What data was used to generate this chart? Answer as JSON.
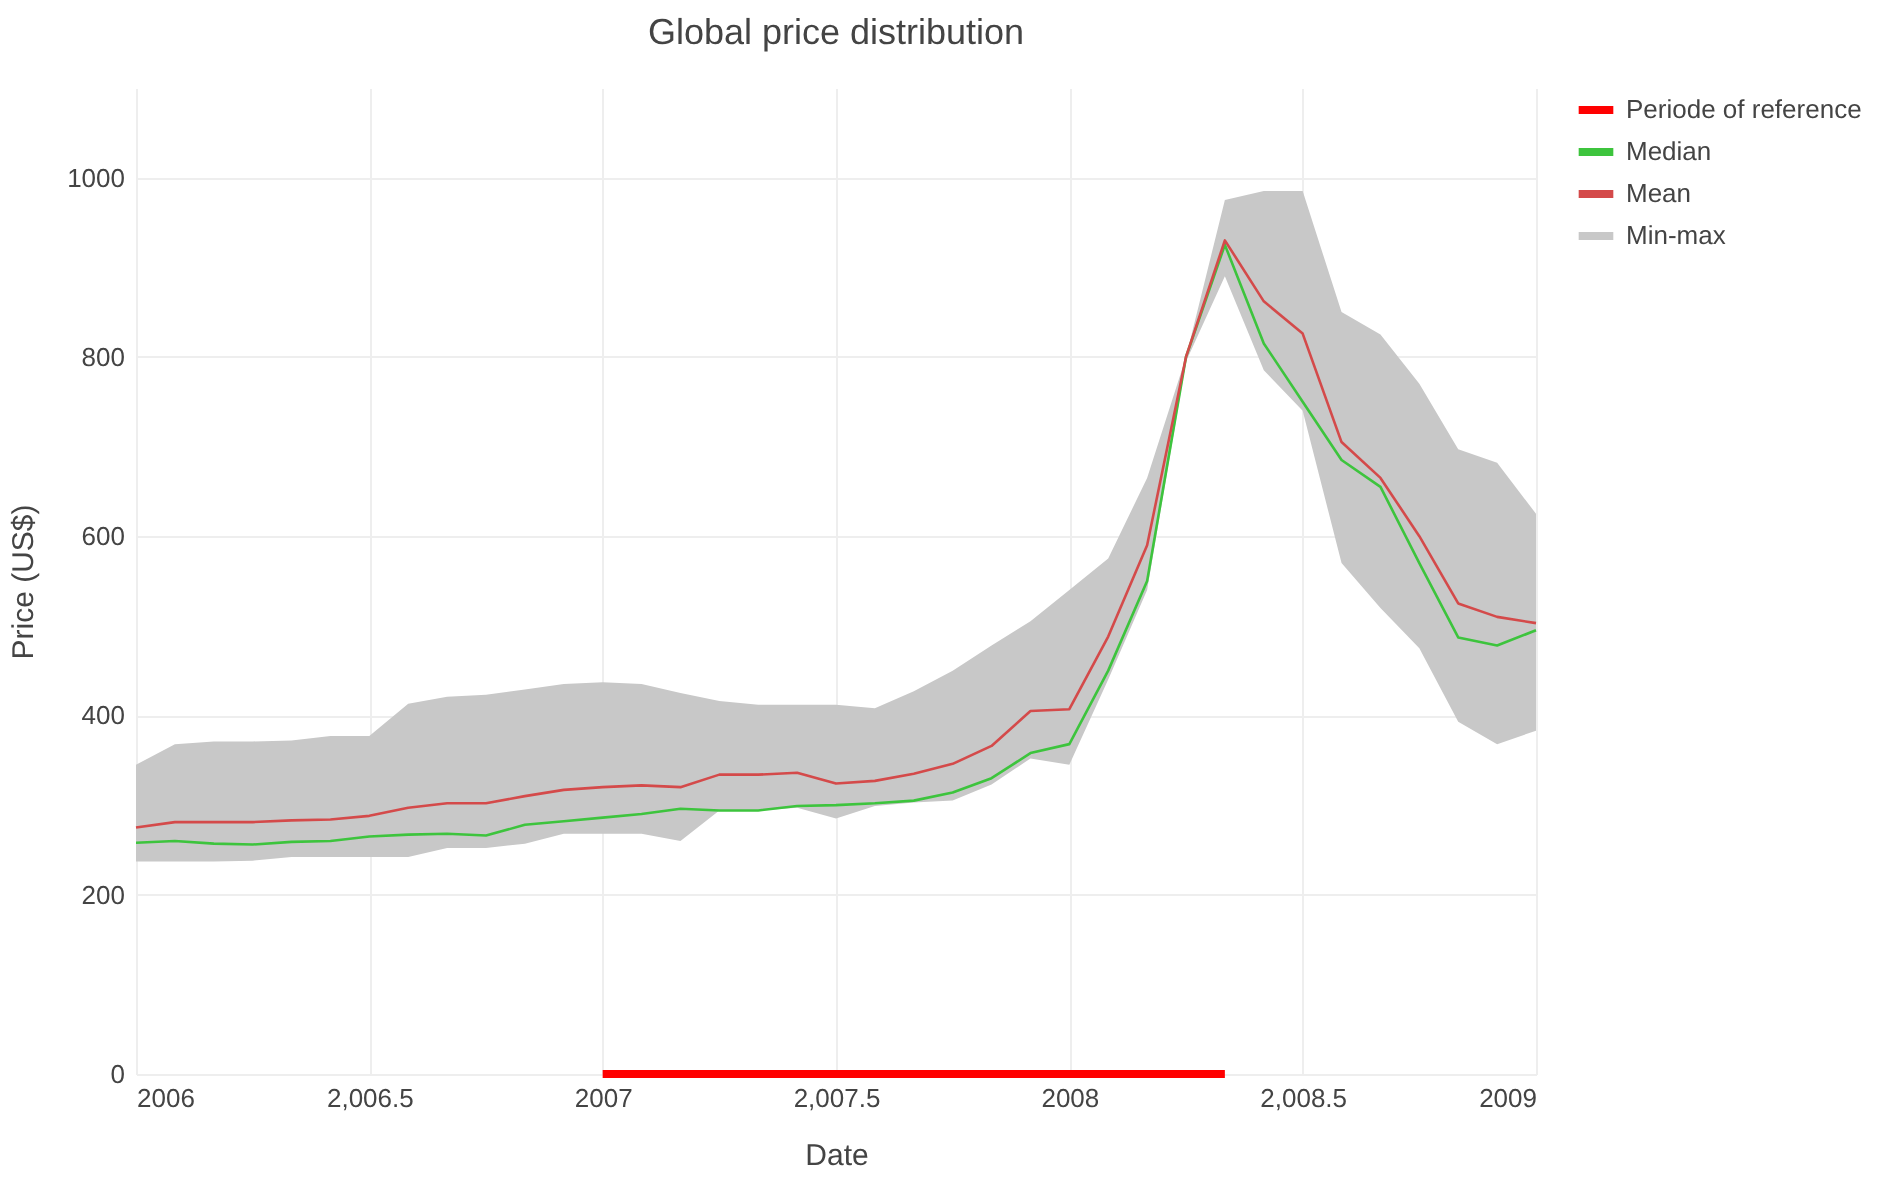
{
  "chart_data": {
    "type": "line",
    "title": "Global price distribution",
    "xlabel": "Date",
    "ylabel": "Price (US$)",
    "x": [
      2006,
      2006.0833,
      2006.1667,
      2006.25,
      2006.3333,
      2006.4167,
      2006.5,
      2006.5833,
      2006.6667,
      2006.75,
      2006.8333,
      2006.9167,
      2007,
      2007.0833,
      2007.1667,
      2007.25,
      2007.3333,
      2007.4167,
      2007.5,
      2007.5833,
      2007.6667,
      2007.75,
      2007.8333,
      2007.9167,
      2008,
      2008.0833,
      2008.1667,
      2008.25,
      2008.3333,
      2008.4167,
      2008.5,
      2008.5833,
      2008.6667,
      2008.75,
      2008.8333,
      2008.9167,
      2009
    ],
    "series": [
      {
        "name": "Periode of reference",
        "type": "line",
        "color": "#ff0000",
        "x": [
          2007,
          2008.3333
        ],
        "values": [
          0,
          0
        ]
      },
      {
        "name": "Median",
        "color": "#3dc43d",
        "values": [
          258,
          260,
          257,
          256,
          259,
          260,
          265,
          267,
          268,
          266,
          278,
          282,
          286,
          290,
          296,
          294,
          294,
          299,
          300,
          302,
          305,
          314,
          330,
          358,
          368,
          450,
          550,
          800,
          925,
          815,
          750,
          685,
          655,
          570,
          487,
          478,
          495
        ]
      },
      {
        "name": "Mean",
        "color": "#d44a4a",
        "values": [
          275,
          281,
          281,
          281,
          283,
          284,
          288,
          297,
          302,
          302,
          310,
          317,
          320,
          322,
          320,
          334,
          334,
          336,
          324,
          327,
          335,
          346,
          366,
          405,
          407,
          488,
          590,
          800,
          930,
          862,
          826,
          705,
          665,
          600,
          525,
          510,
          503
        ]
      },
      {
        "name": "Min-max",
        "type": "area",
        "color": "#c8c8c8",
        "values": [
          null,
          null,
          null,
          null,
          null,
          null,
          null,
          null,
          null,
          null,
          null,
          null,
          null,
          null,
          null,
          null,
          null,
          null,
          null,
          null,
          null,
          null,
          null,
          null,
          null,
          null,
          null,
          null,
          null,
          null,
          null,
          null,
          null,
          null,
          null,
          null,
          null
        ],
        "upper": [
          345,
          368,
          371,
          371,
          372,
          377,
          377,
          413,
          421,
          423,
          429,
          435,
          437,
          435,
          425,
          416,
          412,
          412,
          412,
          408,
          427,
          450,
          478,
          505,
          540,
          575,
          665,
          800,
          975,
          985,
          985,
          850,
          825,
          770,
          697,
          682,
          625
        ],
        "lower": [
          237,
          237,
          237,
          238,
          242,
          242,
          242,
          242,
          252,
          252,
          257,
          268,
          268,
          268,
          260,
          294,
          294,
          297,
          285,
          299,
          303,
          305,
          323,
          352,
          345,
          440,
          540,
          795,
          890,
          785,
          740,
          570,
          520,
          475,
          393,
          368,
          383
        ]
      }
    ],
    "xlim": [
      2006,
      2009
    ],
    "xticks": [
      2006,
      {
        "value": 2006.5,
        "label": "2,006.5"
      },
      2007,
      {
        "value": 2007.5,
        "label": "2,007.5"
      },
      2008,
      {
        "value": 2008.5,
        "label": "2,008.5"
      },
      2009
    ],
    "ylim": [
      0,
      1100
    ],
    "yticks": [
      0,
      200,
      400,
      600,
      800,
      1000
    ],
    "grid": true,
    "legend": "top right"
  }
}
